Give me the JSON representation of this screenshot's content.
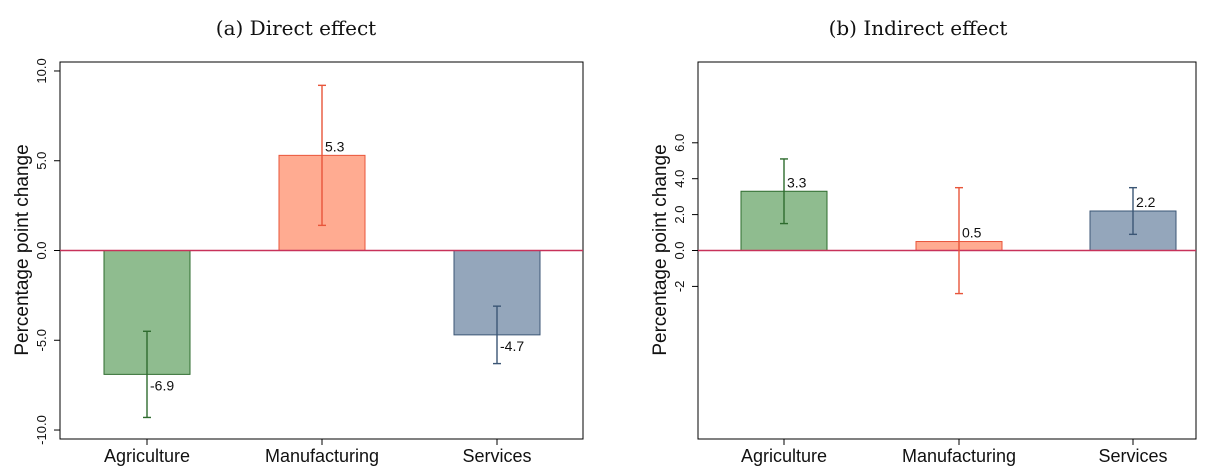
{
  "chart_data": [
    {
      "type": "bar",
      "title": "(a) Direct effect",
      "ylabel": "Percentage point change",
      "categories": [
        "Agriculture",
        "Manufacturing",
        "Services"
      ],
      "values": [
        -6.9,
        5.3,
        -4.7
      ],
      "value_labels": [
        "-6.9",
        "5.3",
        "-4.7"
      ],
      "ci_low": [
        -9.3,
        1.4,
        -6.3
      ],
      "ci_high": [
        -4.5,
        9.2,
        -3.1
      ],
      "ylim": [
        -10.5,
        10.5
      ],
      "yticks": [
        -10,
        -5,
        0,
        5,
        10
      ],
      "ytick_labels": [
        "-10.0",
        "-5.0",
        "0.0",
        "5.0",
        "10.0"
      ],
      "colors": [
        "#8fbc8f",
        "#ffab91",
        "#94a6bb"
      ],
      "edge_colors": [
        "#2e6b2e",
        "#e8553a",
        "#3b5675"
      ],
      "zero_line_color": "#c8325a",
      "grid": false
    },
    {
      "type": "bar",
      "title": "(b) Indirect effect",
      "ylabel": "Percentage point change",
      "categories": [
        "Agriculture",
        "Manufacturing",
        "Services"
      ],
      "values": [
        3.3,
        0.5,
        2.2
      ],
      "value_labels": [
        "3.3",
        "0.5",
        "2.2"
      ],
      "ci_low": [
        1.5,
        -2.4,
        0.9
      ],
      "ci_high": [
        5.1,
        3.5,
        3.5
      ],
      "ylim": [
        -10.5,
        10.5
      ],
      "yticks": [
        -2,
        0,
        2,
        4,
        6
      ],
      "ytick_labels": [
        "-2",
        "0.0",
        "2.0",
        "4.0",
        "6.0"
      ],
      "colors": [
        "#8fbc8f",
        "#ffab91",
        "#94a6bb"
      ],
      "edge_colors": [
        "#2e6b2e",
        "#e8553a",
        "#3b5675"
      ],
      "zero_line_color": "#c8325a",
      "grid": false
    }
  ]
}
